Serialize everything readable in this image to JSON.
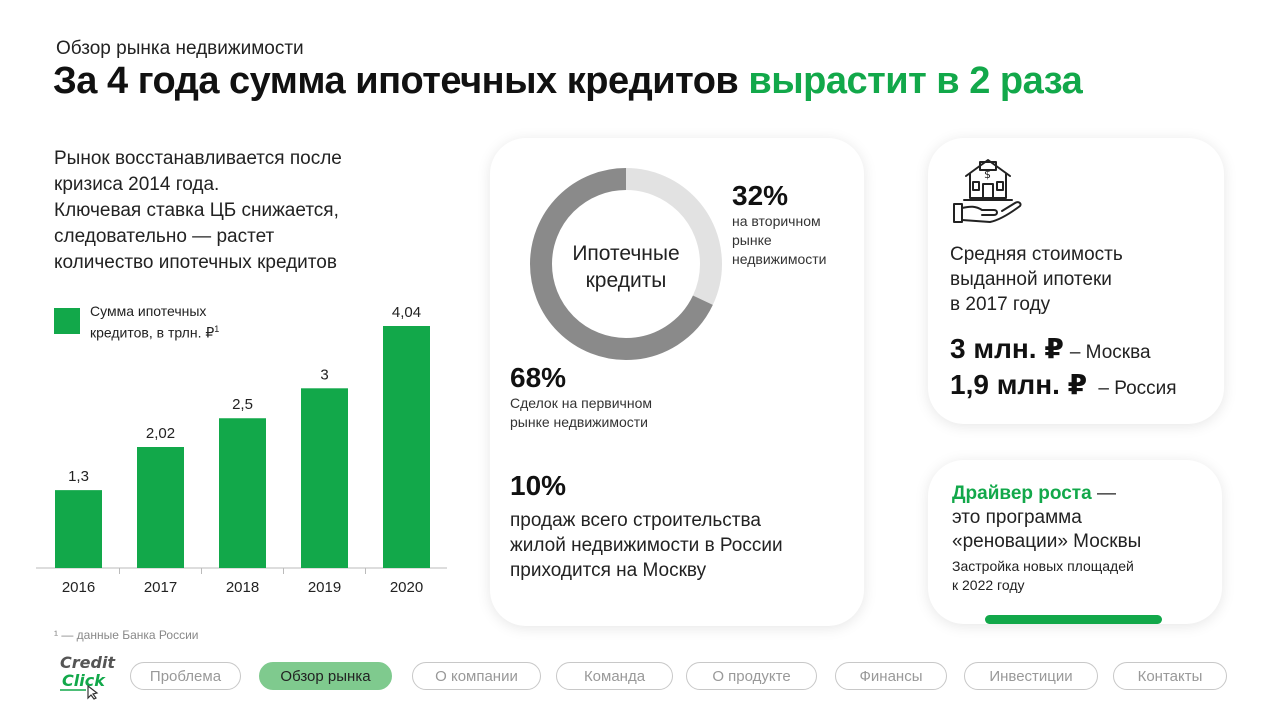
{
  "header": {
    "subtitle": "Обзор рынка недвижимости",
    "title_main": "За 4 года сумма ипотечных кредитов ",
    "title_accent": "вырастит в 2 раза"
  },
  "intro": {
    "line1": "Рынок восстанавливается  после",
    "line2": "кризиса 2014 года.",
    "line3": "Ключевая ставка ЦБ снижается,",
    "line4": "следовательно  — растет",
    "line5": "количество  ипотечных  кредитов"
  },
  "legend": {
    "text": "Сумма ипотечных кредитов, в трлн. ₽",
    "sup": "1"
  },
  "chart_data": {
    "type": "bar",
    "categories": [
      "2016",
      "2017",
      "2018",
      "2019",
      "2020"
    ],
    "values": [
      1.3,
      2.02,
      2.5,
      3,
      4.04
    ],
    "value_labels": [
      "1,3",
      "2,02",
      "2,5",
      "3",
      "4,04"
    ],
    "ylim": [
      0,
      4.04
    ],
    "color": "#12a84a",
    "grid": false
  },
  "footnote": "¹ — данные Банка России",
  "donut": {
    "label_line1": "Ипотечные",
    "label_line2": "кредиты",
    "primary_share": 68,
    "secondary_share": 32,
    "primary_color": "#8a8a8a",
    "secondary_color": "#e2e2e2"
  },
  "stats": {
    "secondary_pct": "32%",
    "secondary_desc1": "на вторичном",
    "secondary_desc2": "рынке",
    "secondary_desc3": "недвижимости",
    "primary_pct": "68%",
    "primary_desc1": "Сделок на первичном",
    "primary_desc2": "рынке недвижимости",
    "moscow_pct": "10%",
    "moscow_desc1": "продаж всего строительства",
    "moscow_desc2": "жилой недвижимости в России",
    "moscow_desc3": "приходится на Москву"
  },
  "mortgage": {
    "label1": "Средняя стоимость",
    "label2": "выданной ипотеки",
    "label3": "в 2017 году",
    "moscow_value": "3 млн. ₽",
    "moscow_suffix": "– Москва",
    "russia_value": "1,9 млн. ₽",
    "russia_suffix": " – Россия",
    "icon": "house-money-icon"
  },
  "driver": {
    "accent": "Драйвер роста",
    "rest1": " —",
    "rest2": "это программа",
    "rest3": "«реновации» Москвы",
    "sub1": "Застройка новых площадей",
    "sub2": "к 2022 году"
  },
  "logo": {
    "line1": "Credit",
    "line2": "Click"
  },
  "nav": {
    "items": [
      {
        "label": "Проблема"
      },
      {
        "label": "Обзор рынка"
      },
      {
        "label": "О компании"
      },
      {
        "label": "Команда"
      },
      {
        "label": "О продукте"
      },
      {
        "label": "Финансы"
      },
      {
        "label": "Инвестиции"
      },
      {
        "label": "Контакты"
      }
    ],
    "active_index": 1
  }
}
